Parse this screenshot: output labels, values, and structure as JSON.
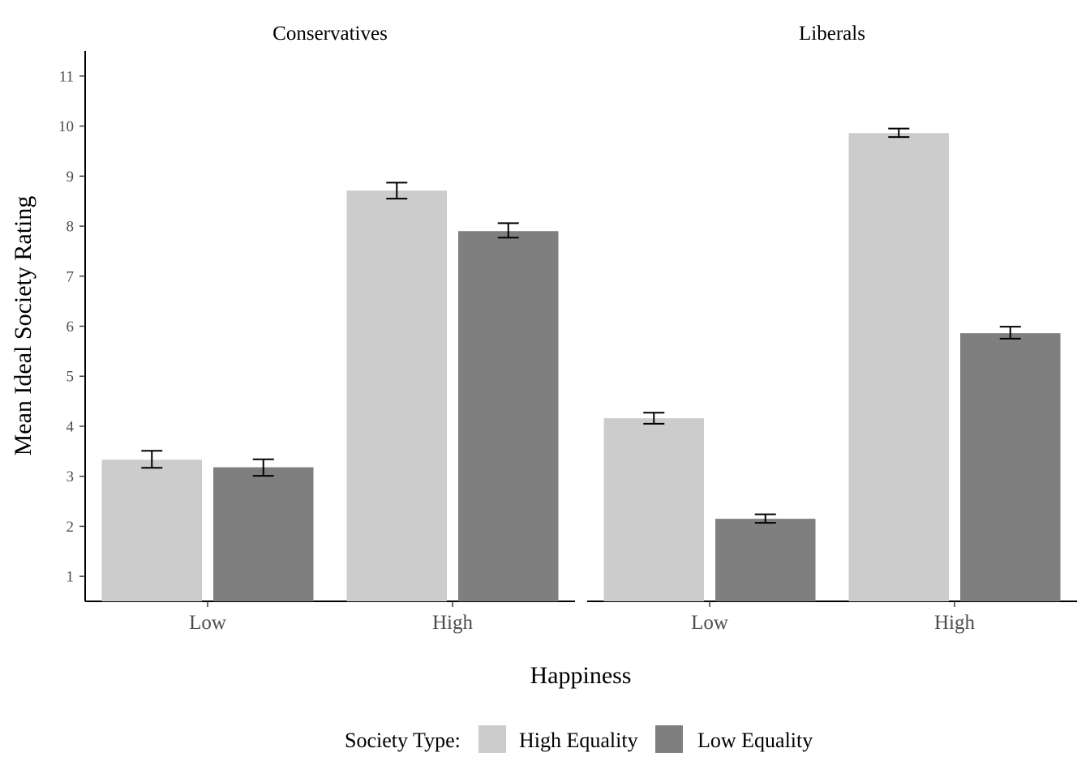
{
  "chart_data": {
    "type": "bar",
    "facets": [
      "Conservatives",
      "Liberals"
    ],
    "categories": [
      "Low",
      "High"
    ],
    "xlabel": "Happiness",
    "ylabel": "Mean Ideal Society Rating",
    "ylim": [
      0.5,
      11.5
    ],
    "yticks": [
      1,
      2,
      3,
      4,
      5,
      6,
      7,
      8,
      9,
      10,
      11
    ],
    "legend": {
      "title": "Society Type:",
      "position": "bottom",
      "items": [
        "High Equality",
        "Low Equality"
      ]
    },
    "series": [
      {
        "name": "High Equality",
        "color": "#cccccc",
        "values": {
          "Conservatives": [
            3.33,
            8.71
          ],
          "Liberals": [
            4.16,
            9.86
          ]
        },
        "error": {
          "Conservatives": [
            [
              3.17,
              3.51
            ],
            [
              8.55,
              8.87
            ]
          ],
          "Liberals": [
            [
              4.05,
              4.27
            ],
            [
              9.78,
              9.95
            ]
          ]
        }
      },
      {
        "name": "Low Equality",
        "color": "#7f7f7f",
        "values": {
          "Conservatives": [
            3.18,
            7.9
          ],
          "Liberals": [
            2.15,
            5.86
          ]
        },
        "error": {
          "Conservatives": [
            [
              3.01,
              3.34
            ],
            [
              7.77,
              8.06
            ]
          ],
          "Liberals": [
            [
              2.07,
              2.24
            ],
            [
              5.75,
              5.99
            ]
          ]
        }
      }
    ],
    "grid": false
  }
}
